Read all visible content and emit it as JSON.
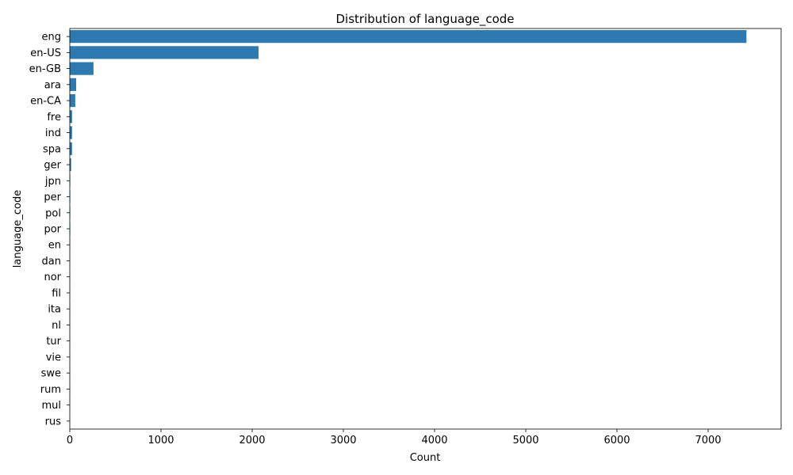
{
  "chart_data": {
    "type": "bar",
    "orientation": "horizontal",
    "title": "Distribution of language_code",
    "xlabel": "Count",
    "ylabel": "language_code",
    "categories": [
      "eng",
      "en-US",
      "en-GB",
      "ara",
      "en-CA",
      "fre",
      "ind",
      "spa",
      "ger",
      "jpn",
      "per",
      "pol",
      "por",
      "en",
      "dan",
      "nor",
      "fil",
      "ita",
      "nl",
      "tur",
      "vie",
      "swe",
      "rum",
      "mul",
      "rus"
    ],
    "values": [
      7420,
      2070,
      260,
      70,
      60,
      25,
      25,
      25,
      15,
      5,
      5,
      5,
      5,
      4,
      3,
      3,
      3,
      3,
      2,
      2,
      2,
      2,
      2,
      1,
      1
    ],
    "xlim": [
      0,
      7800
    ],
    "xticks": [
      0,
      1000,
      2000,
      3000,
      4000,
      5000,
      6000,
      7000
    ],
    "bar_color": "#2f79b1",
    "grid": false,
    "legend": "none"
  }
}
